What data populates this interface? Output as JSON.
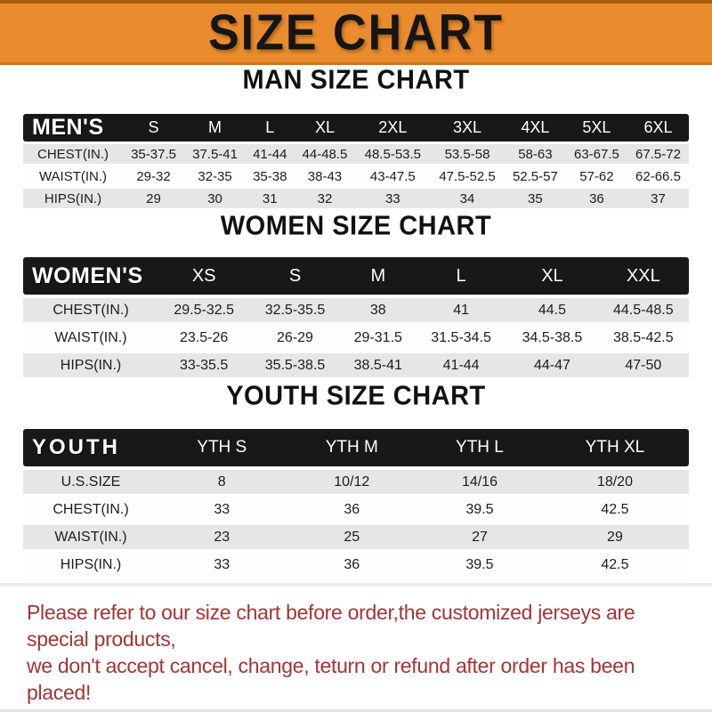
{
  "banner": {
    "title": "SIZE CHART",
    "bg_color": "#EA8C2D",
    "text_color": "#151515"
  },
  "sections": [
    {
      "id": "men",
      "title": "MAN SIZE CHART",
      "group_label": "MEN'S",
      "columns": [
        "S",
        "M",
        "L",
        "XL",
        "2XL",
        "3XL",
        "4XL",
        "5XL",
        "6XL"
      ],
      "rows": [
        {
          "label": "CHEST(IN.)",
          "values": [
            "35-37.5",
            "37.5-41",
            "41-44",
            "44-48.5",
            "48.5-53.5",
            "53.5-58",
            "58-63",
            "63-67.5",
            "67.5-72"
          ]
        },
        {
          "label": "WAIST(IN.)",
          "values": [
            "29-32",
            "32-35",
            "35-38",
            "38-43",
            "43-47.5",
            "47.5-52.5",
            "52.5-57",
            "57-62",
            "62-66.5"
          ]
        },
        {
          "label": "HIPS(IN.)",
          "values": [
            "29",
            "30",
            "31",
            "32",
            "33",
            "34",
            "35",
            "36",
            "37"
          ]
        }
      ]
    },
    {
      "id": "women",
      "title": "WOMEN SIZE CHART",
      "group_label": "WOMEN'S",
      "columns": [
        "XS",
        "S",
        "M",
        "L",
        "XL",
        "XXL"
      ],
      "rows": [
        {
          "label": "CHEST(IN.)",
          "values": [
            "29.5-32.5",
            "32.5-35.5",
            "38",
            "41",
            "44.5",
            "44.5-48.5"
          ]
        },
        {
          "label": "WAIST(IN.)",
          "values": [
            "23.5-26",
            "26-29",
            "29-31.5",
            "31.5-34.5",
            "34.5-38.5",
            "38.5-42.5"
          ]
        },
        {
          "label": "HIPS(IN.)",
          "values": [
            "33-35.5",
            "35.5-38.5",
            "38.5-41",
            "41-44",
            "44-47",
            "47-50"
          ]
        }
      ]
    },
    {
      "id": "youth",
      "title": "YOUTH SIZE CHART",
      "group_label": "YOUTH",
      "columns": [
        "YTH S",
        "YTH M",
        "YTH L",
        "YTH XL"
      ],
      "rows": [
        {
          "label": "U.S.SIZE",
          "values": [
            "8",
            "10/12",
            "14/16",
            "18/20"
          ]
        },
        {
          "label": "CHEST(IN.)",
          "values": [
            "33",
            "36",
            "39.5",
            "42.5"
          ]
        },
        {
          "label": "WAIST(IN.)",
          "values": [
            "23",
            "25",
            "27",
            "29"
          ]
        },
        {
          "label": "HIPS(IN.)",
          "values": [
            "33",
            "36",
            "39.5",
            "42.5"
          ]
        }
      ]
    }
  ],
  "footer": {
    "line1": "Please refer to our size chart before order,the customized jerseys are special products,",
    "line2": "we don't accept cancel, change, teturn or refund after order has been placed!",
    "text_color": "#A63333"
  }
}
